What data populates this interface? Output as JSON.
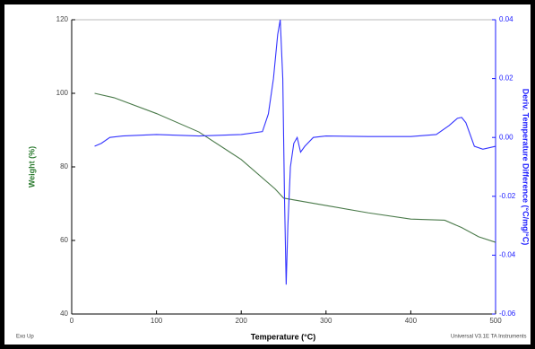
{
  "chart_data": {
    "type": "line",
    "xlabel": "Temperature (°C)",
    "ylabel": "Weight (%)",
    "y2label": "Deriv. Temperature Difference (°C/mg/°C)",
    "annotations": [
      "Exo Up",
      "Universal V3.1E TA Instruments"
    ],
    "xlim": [
      0,
      500
    ],
    "xticks": [
      0,
      100,
      200,
      300,
      400,
      500
    ],
    "ylim": [
      40,
      120
    ],
    "yticks": [
      120,
      100,
      80,
      60,
      40
    ],
    "y2lim": [
      -0.06,
      0.04
    ],
    "y2ticks": [
      0.04,
      0.02,
      {
        "value": 0,
        "label": "0.00"
      },
      -0.02,
      -0.04,
      -0.06
    ],
    "ylabel_color": "#2e7d32",
    "y2label_color": "#1a1aff",
    "series": [
      {
        "color": "#4a7a4a",
        "axis": "y",
        "x": [
          27,
          50,
          100,
          150,
          200,
          240,
          250,
          300,
          350,
          400,
          440,
          460,
          480,
          500
        ],
        "values": [
          100,
          98.8,
          94.5,
          89.5,
          82,
          74,
          71.5,
          69.5,
          67.5,
          65.8,
          65.5,
          63.5,
          61,
          59.5
        ]
      },
      {
        "color": "#3333ff",
        "axis": "y2",
        "x": [
          27,
          35,
          45,
          60,
          100,
          150,
          200,
          225,
          232,
          238,
          243,
          246,
          249,
          251,
          253,
          255,
          258,
          262,
          266,
          270,
          275,
          285,
          300,
          350,
          400,
          430,
          445,
          455,
          460,
          465,
          475,
          485,
          500
        ],
        "values": [
          -0.003,
          -0.002,
          0,
          0.0005,
          0.001,
          0.0005,
          0.001,
          0.002,
          0.008,
          0.02,
          0.035,
          0.04,
          0.02,
          -0.02,
          -0.05,
          -0.03,
          -0.01,
          -0.002,
          0,
          -0.005,
          -0.003,
          0,
          0.0005,
          0.0003,
          0.0003,
          0.001,
          0.004,
          0.0065,
          0.0068,
          0.005,
          -0.003,
          -0.004,
          -0.003
        ]
      }
    ]
  }
}
